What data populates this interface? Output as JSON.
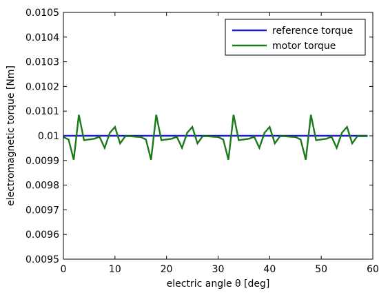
{
  "chart_data": {
    "type": "line",
    "xlabel": "electric angle θ [deg]",
    "ylabel": "electromagnetic torque [Nm]",
    "xlim": [
      0,
      60
    ],
    "ylim": [
      0.0095,
      0.0105
    ],
    "xticks": [
      0,
      10,
      20,
      30,
      40,
      50,
      60
    ],
    "xtick_labels": [
      "0",
      "10",
      "20",
      "30",
      "40",
      "50",
      "60"
    ],
    "yticks": [
      0.0095,
      0.0096,
      0.0097,
      0.0098,
      0.0099,
      0.01,
      0.0101,
      0.0102,
      0.0103,
      0.0104,
      0.0105
    ],
    "ytick_labels": [
      "0.0095",
      "0.0096",
      "0.0097",
      "0.0098",
      "0.0099",
      "0.01",
      "0.0101",
      "0.0102",
      "0.0103",
      "0.0104",
      "0.0105"
    ],
    "grid": false,
    "legend": "top-right",
    "series": [
      {
        "name": "reference torque",
        "color": "#1f1fbf",
        "x": [
          0,
          59
        ],
        "y": [
          0.01,
          0.01
        ]
      },
      {
        "name": "motor torque",
        "color": "#1a7a1a",
        "x": [
          0,
          1,
          2,
          3,
          4,
          5,
          6,
          7,
          8,
          9,
          10,
          11,
          12,
          13,
          14,
          15,
          16,
          17,
          18,
          19,
          20,
          21,
          22,
          23,
          24,
          25,
          26,
          27,
          28,
          29,
          30,
          31,
          32,
          33,
          34,
          35,
          36,
          37,
          38,
          39,
          40,
          41,
          42,
          43,
          44,
          45,
          46,
          47,
          48,
          49,
          50,
          51,
          52,
          53,
          54,
          55,
          56,
          57,
          58,
          59
        ],
        "y": [
          0.009995,
          0.009985,
          0.009903,
          0.010085,
          0.009982,
          0.009985,
          0.009988,
          0.009996,
          0.009951,
          0.010012,
          0.010036,
          0.009969,
          0.009998,
          0.009998,
          0.009996,
          0.009995,
          0.009985,
          0.009903,
          0.010085,
          0.009982,
          0.009985,
          0.009988,
          0.009996,
          0.009951,
          0.010012,
          0.010036,
          0.009969,
          0.009998,
          0.009998,
          0.009996,
          0.009995,
          0.009985,
          0.009903,
          0.010085,
          0.009982,
          0.009985,
          0.009988,
          0.009996,
          0.009951,
          0.010012,
          0.010036,
          0.009969,
          0.009998,
          0.009998,
          0.009996,
          0.009995,
          0.009985,
          0.009903,
          0.010085,
          0.009982,
          0.009985,
          0.009988,
          0.009996,
          0.009951,
          0.010012,
          0.010036,
          0.009969,
          0.009998,
          0.009998,
          0.009998
        ]
      }
    ]
  }
}
